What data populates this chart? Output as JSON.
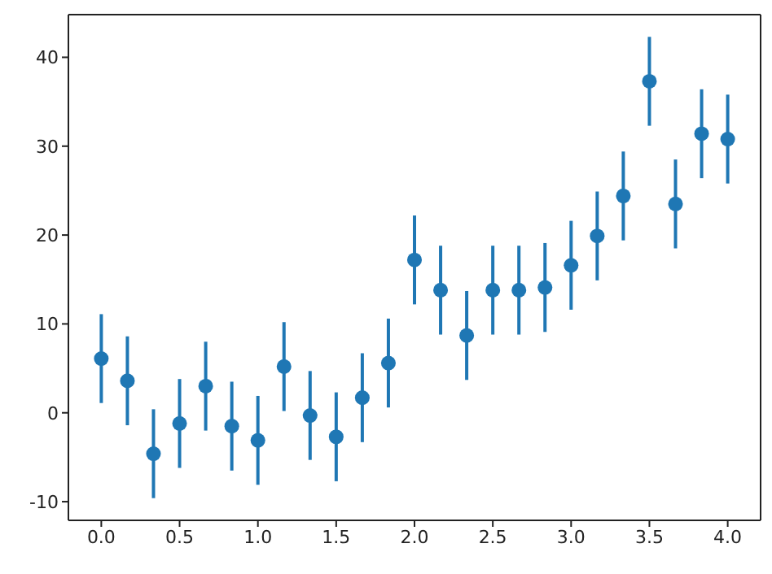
{
  "chart_data": {
    "type": "scatter",
    "x": [
      0,
      0.1667,
      0.3333,
      0.5,
      0.6667,
      0.8333,
      1,
      1.1667,
      1.3333,
      1.5,
      1.6667,
      1.8333,
      2,
      2.1667,
      2.3333,
      2.5,
      2.6667,
      2.8333,
      3,
      3.1667,
      3.3333,
      3.5,
      3.6667,
      3.8333,
      4
    ],
    "values": [
      6.1,
      3.6,
      -4.6,
      -1.2,
      3.0,
      -1.5,
      -3.1,
      5.2,
      -0.3,
      -2.7,
      1.7,
      5.6,
      17.2,
      13.8,
      8.7,
      13.8,
      13.8,
      14.1,
      16.6,
      19.9,
      24.4,
      37.3,
      23.5,
      31.4,
      30.8
    ],
    "errors": [
      5,
      5,
      5,
      5,
      5,
      5,
      5,
      5,
      5,
      5,
      5,
      5,
      5,
      5,
      5,
      5,
      5,
      5,
      5,
      5,
      5,
      5,
      5,
      5,
      5
    ],
    "color": "#1f77b4",
    "marker": "circle",
    "xlim": [
      -0.21,
      4.21
    ],
    "xticks": [
      {
        "value": 0,
        "label": "0.0"
      },
      {
        "value": 0.5,
        "label": "0.5"
      },
      {
        "value": 1,
        "label": "1.0"
      },
      {
        "value": 1.5,
        "label": "1.5"
      },
      {
        "value": 2,
        "label": "2.0"
      },
      {
        "value": 2.5,
        "label": "2.5"
      },
      {
        "value": 3,
        "label": "3.0"
      },
      {
        "value": 3.5,
        "label": "3.5"
      },
      {
        "value": 4,
        "label": "4.0"
      }
    ],
    "ylim": [
      -12.1,
      44.8
    ],
    "yticks": [
      -10,
      0,
      10,
      20,
      30,
      40
    ],
    "grid": false
  }
}
